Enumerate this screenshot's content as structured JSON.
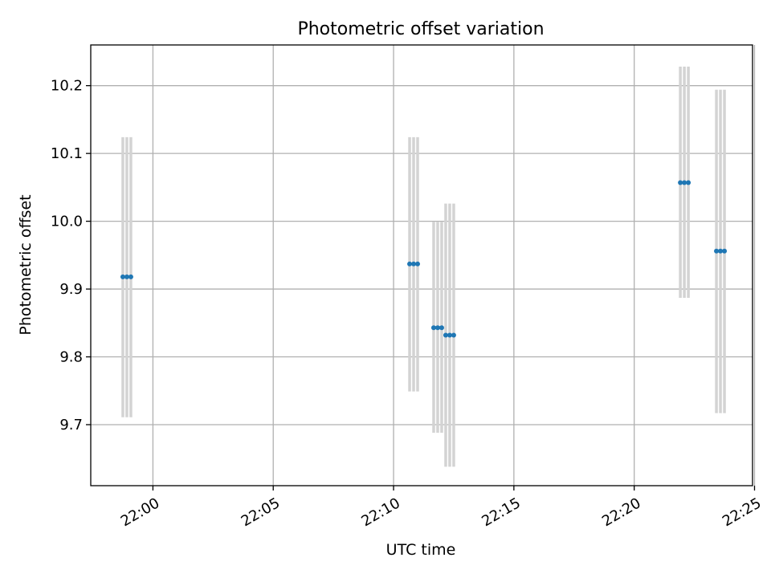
{
  "chart_data": {
    "type": "scatter",
    "title": "Photometric offset variation",
    "xlabel": "UTC time",
    "ylabel": "Photometric offset",
    "x_ticks": [
      "22:00",
      "22:05",
      "22:10",
      "22:15",
      "22:20",
      "22:25"
    ],
    "y_ticks": [
      "9.7",
      "9.8",
      "9.9",
      "10.0",
      "10.1",
      "10.2"
    ],
    "xlim": [
      "21:57:25",
      "22:24:55"
    ],
    "ylim": [
      9.61,
      10.26
    ],
    "grid": true,
    "legend": "none",
    "colors": {
      "points": "#1f77b4",
      "error_bars": "#d3d3d3",
      "grid": "#b0b0b0",
      "axes": "#000000"
    },
    "series": [
      {
        "values": [
          {
            "x": "21:58:45",
            "y": 9.918,
            "yerr_low": 9.711,
            "yerr_high": 10.124
          },
          {
            "x": "21:58:55",
            "y": 9.918,
            "yerr_low": 9.711,
            "yerr_high": 10.124
          },
          {
            "x": "21:59:05",
            "y": 9.918,
            "yerr_low": 9.711,
            "yerr_high": 10.124
          },
          {
            "x": "22:10:40",
            "y": 9.937,
            "yerr_low": 9.749,
            "yerr_high": 10.124
          },
          {
            "x": "22:10:50",
            "y": 9.937,
            "yerr_low": 9.749,
            "yerr_high": 10.124
          },
          {
            "x": "22:11:00",
            "y": 9.937,
            "yerr_low": 9.749,
            "yerr_high": 10.124
          },
          {
            "x": "22:11:40",
            "y": 9.843,
            "yerr_low": 9.688,
            "yerr_high": 9.999
          },
          {
            "x": "22:11:50",
            "y": 9.843,
            "yerr_low": 9.688,
            "yerr_high": 9.999
          },
          {
            "x": "22:12:00",
            "y": 9.843,
            "yerr_low": 9.688,
            "yerr_high": 9.999
          },
          {
            "x": "22:12:10",
            "y": 9.832,
            "yerr_low": 9.638,
            "yerr_high": 10.026
          },
          {
            "x": "22:12:20",
            "y": 9.832,
            "yerr_low": 9.638,
            "yerr_high": 10.026
          },
          {
            "x": "22:12:30",
            "y": 9.832,
            "yerr_low": 9.638,
            "yerr_high": 10.026
          },
          {
            "x": "22:21:55",
            "y": 10.057,
            "yerr_low": 9.887,
            "yerr_high": 10.228
          },
          {
            "x": "22:22:05",
            "y": 10.057,
            "yerr_low": 9.887,
            "yerr_high": 10.228
          },
          {
            "x": "22:22:15",
            "y": 10.057,
            "yerr_low": 9.887,
            "yerr_high": 10.228
          },
          {
            "x": "22:23:25",
            "y": 9.956,
            "yerr_low": 9.717,
            "yerr_high": 10.194
          },
          {
            "x": "22:23:35",
            "y": 9.956,
            "yerr_low": 9.717,
            "yerr_high": 10.194
          },
          {
            "x": "22:23:45",
            "y": 9.956,
            "yerr_low": 9.717,
            "yerr_high": 10.194
          }
        ]
      }
    ]
  }
}
